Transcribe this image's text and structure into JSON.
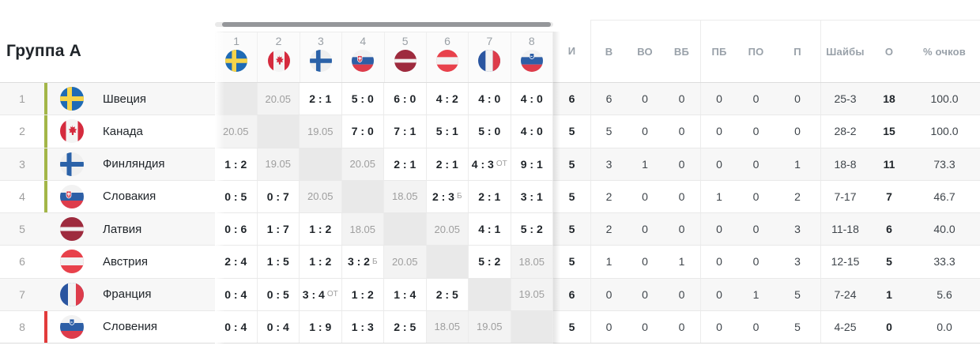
{
  "title": "Группа А",
  "colors": {
    "qualify_accent": "#a3b648",
    "relegate_accent": "#e23b3b",
    "result_text": "#1f2429",
    "muted_text": "#9aa0a6"
  },
  "cross_header": {
    "columns": [
      {
        "num": "1",
        "flag": "sweden"
      },
      {
        "num": "2",
        "flag": "canada"
      },
      {
        "num": "3",
        "flag": "finland"
      },
      {
        "num": "4",
        "flag": "slovakia"
      },
      {
        "num": "5",
        "flag": "latvia"
      },
      {
        "num": "6",
        "flag": "austria"
      },
      {
        "num": "7",
        "flag": "france"
      },
      {
        "num": "8",
        "flag": "slovenia"
      }
    ]
  },
  "stats_header": {
    "labels": [
      "И",
      "В",
      "ВО",
      "ВБ",
      "ПБ",
      "ПО",
      "П",
      "Шайбы",
      "О",
      "% очков"
    ]
  },
  "rows": [
    {
      "pos": "1",
      "team": "Швеция",
      "flag": "sweden",
      "accent": "qualify",
      "cells": [
        {
          "self": true
        },
        {
          "date": "20.05"
        },
        {
          "score": "2 : 1"
        },
        {
          "score": "5 : 0"
        },
        {
          "score": "6 : 0"
        },
        {
          "score": "4 : 2"
        },
        {
          "score": "4 : 0"
        },
        {
          "score": "4 : 0"
        }
      ],
      "stats": [
        "6",
        "6",
        "0",
        "0",
        "0",
        "0",
        "0",
        "25-3",
        "18",
        "100.0"
      ]
    },
    {
      "pos": "2",
      "team": "Канада",
      "flag": "canada",
      "accent": "qualify",
      "cells": [
        {
          "date": "20.05"
        },
        {
          "self": true
        },
        {
          "date": "19.05"
        },
        {
          "score": "7 : 0"
        },
        {
          "score": "7 : 1"
        },
        {
          "score": "5 : 1"
        },
        {
          "score": "5 : 0"
        },
        {
          "score": "4 : 0"
        }
      ],
      "stats": [
        "5",
        "5",
        "0",
        "0",
        "0",
        "0",
        "0",
        "28-2",
        "15",
        "100.0"
      ]
    },
    {
      "pos": "3",
      "team": "Финляндия",
      "flag": "finland",
      "accent": "qualify",
      "cells": [
        {
          "score": "1 : 2"
        },
        {
          "date": "19.05"
        },
        {
          "self": true
        },
        {
          "date": "20.05"
        },
        {
          "score": "2 : 1"
        },
        {
          "score": "2 : 1"
        },
        {
          "score": "4 : 3",
          "suffix": "ОТ"
        },
        {
          "score": "9 : 1"
        }
      ],
      "stats": [
        "5",
        "3",
        "1",
        "0",
        "0",
        "0",
        "1",
        "18-8",
        "11",
        "73.3"
      ]
    },
    {
      "pos": "4",
      "team": "Словакия",
      "flag": "slovakia",
      "accent": "qualify",
      "cells": [
        {
          "score": "0 : 5"
        },
        {
          "score": "0 : 7"
        },
        {
          "date": "20.05"
        },
        {
          "self": true
        },
        {
          "date": "18.05"
        },
        {
          "score": "2 : 3",
          "suffix": "Б"
        },
        {
          "score": "2 : 1"
        },
        {
          "score": "3 : 1"
        }
      ],
      "stats": [
        "5",
        "2",
        "0",
        "0",
        "1",
        "0",
        "2",
        "7-17",
        "7",
        "46.7"
      ]
    },
    {
      "pos": "5",
      "team": "Латвия",
      "flag": "latvia",
      "accent": null,
      "cells": [
        {
          "score": "0 : 6"
        },
        {
          "score": "1 : 7"
        },
        {
          "score": "1 : 2"
        },
        {
          "date": "18.05"
        },
        {
          "self": true
        },
        {
          "date": "20.05"
        },
        {
          "score": "4 : 1"
        },
        {
          "score": "5 : 2"
        }
      ],
      "stats": [
        "5",
        "2",
        "0",
        "0",
        "0",
        "0",
        "3",
        "11-18",
        "6",
        "40.0"
      ]
    },
    {
      "pos": "6",
      "team": "Австрия",
      "flag": "austria",
      "accent": null,
      "cells": [
        {
          "score": "2 : 4"
        },
        {
          "score": "1 : 5"
        },
        {
          "score": "1 : 2"
        },
        {
          "score": "3 : 2",
          "suffix": "Б"
        },
        {
          "date": "20.05"
        },
        {
          "self": true
        },
        {
          "score": "5 : 2"
        },
        {
          "date": "18.05"
        }
      ],
      "stats": [
        "5",
        "1",
        "0",
        "1",
        "0",
        "0",
        "3",
        "12-15",
        "5",
        "33.3"
      ]
    },
    {
      "pos": "7",
      "team": "Франция",
      "flag": "france",
      "accent": null,
      "cells": [
        {
          "score": "0 : 4"
        },
        {
          "score": "0 : 5"
        },
        {
          "score": "3 : 4",
          "suffix": "ОТ"
        },
        {
          "score": "1 : 2"
        },
        {
          "score": "1 : 4"
        },
        {
          "score": "2 : 5"
        },
        {
          "self": true
        },
        {
          "date": "19.05"
        }
      ],
      "stats": [
        "6",
        "0",
        "0",
        "0",
        "0",
        "1",
        "5",
        "7-24",
        "1",
        "5.6"
      ]
    },
    {
      "pos": "8",
      "team": "Словения",
      "flag": "slovenia",
      "accent": "relegate",
      "cells": [
        {
          "score": "0 : 4"
        },
        {
          "score": "0 : 4"
        },
        {
          "score": "1 : 9"
        },
        {
          "score": "1 : 3"
        },
        {
          "score": "2 : 5"
        },
        {
          "date": "18.05"
        },
        {
          "date": "19.05"
        },
        {
          "self": true
        }
      ],
      "stats": [
        "5",
        "0",
        "0",
        "0",
        "0",
        "0",
        "5",
        "4-25",
        "0",
        "0.0"
      ]
    }
  ]
}
